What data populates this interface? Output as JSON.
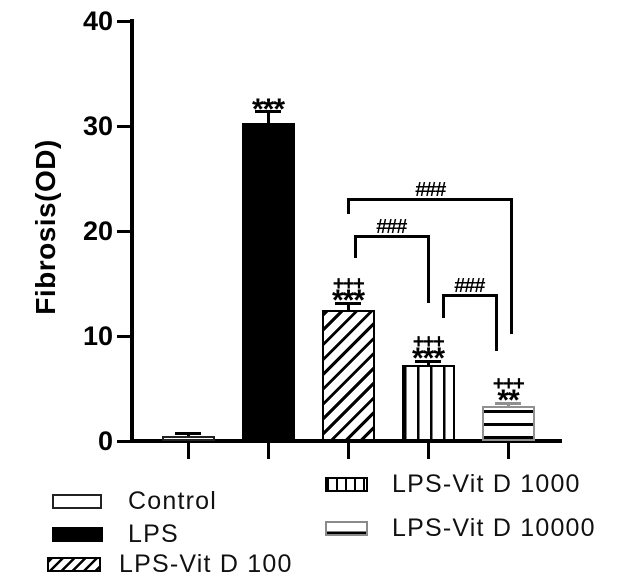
{
  "chart_data": {
    "type": "bar",
    "title": "",
    "xlabel": "",
    "ylabel": "Fibrosis(OD)",
    "ylim": [
      0,
      40
    ],
    "yticks": [
      0,
      10,
      20,
      30,
      40
    ],
    "grid": false,
    "legend_position": "bottom",
    "categories": [
      "Control",
      "LPS",
      "LPS-Vit D 100",
      "LPS-Vit D 1000",
      "LPS-Vit D 10000"
    ],
    "values": [
      0.45,
      30.3,
      12.5,
      7.2,
      3.3
    ],
    "errors": [
      0.25,
      1.05,
      0.6,
      0.4,
      0.3
    ],
    "bar_styles": [
      "white-outline",
      "solid-black",
      "diagonal-hatch",
      "vertical-stripes",
      "horizontal-stripes-gray"
    ],
    "bar_annotations": [
      [],
      [
        "***"
      ],
      [
        "+++",
        "***"
      ],
      [
        "+++",
        "***"
      ],
      [
        "+++",
        "**"
      ]
    ],
    "comparison_brackets": [
      {
        "label": "###",
        "between": [
          "LPS-Vit D 100",
          "LPS-Vit D 10000"
        ]
      },
      {
        "label": "###",
        "between": [
          "LPS-Vit D 100",
          "LPS-Vit D 1000"
        ]
      },
      {
        "label": "###",
        "between": [
          "LPS-Vit D 1000",
          "LPS-Vit D 10000"
        ]
      }
    ]
  },
  "legend": {
    "items": [
      {
        "label": "Control",
        "style": "white-outline"
      },
      {
        "label": "LPS",
        "style": "solid-black"
      },
      {
        "label": "LPS-Vit D 100",
        "style": "diagonal-hatch"
      },
      {
        "label": "LPS-Vit D 1000",
        "style": "vertical-stripes"
      },
      {
        "label": "LPS-Vit D 10000",
        "style": "horizontal-stripes-gray"
      }
    ]
  },
  "colors": {
    "ink": "#000000",
    "gray_error": "#909090",
    "background": "#ffffff"
  }
}
